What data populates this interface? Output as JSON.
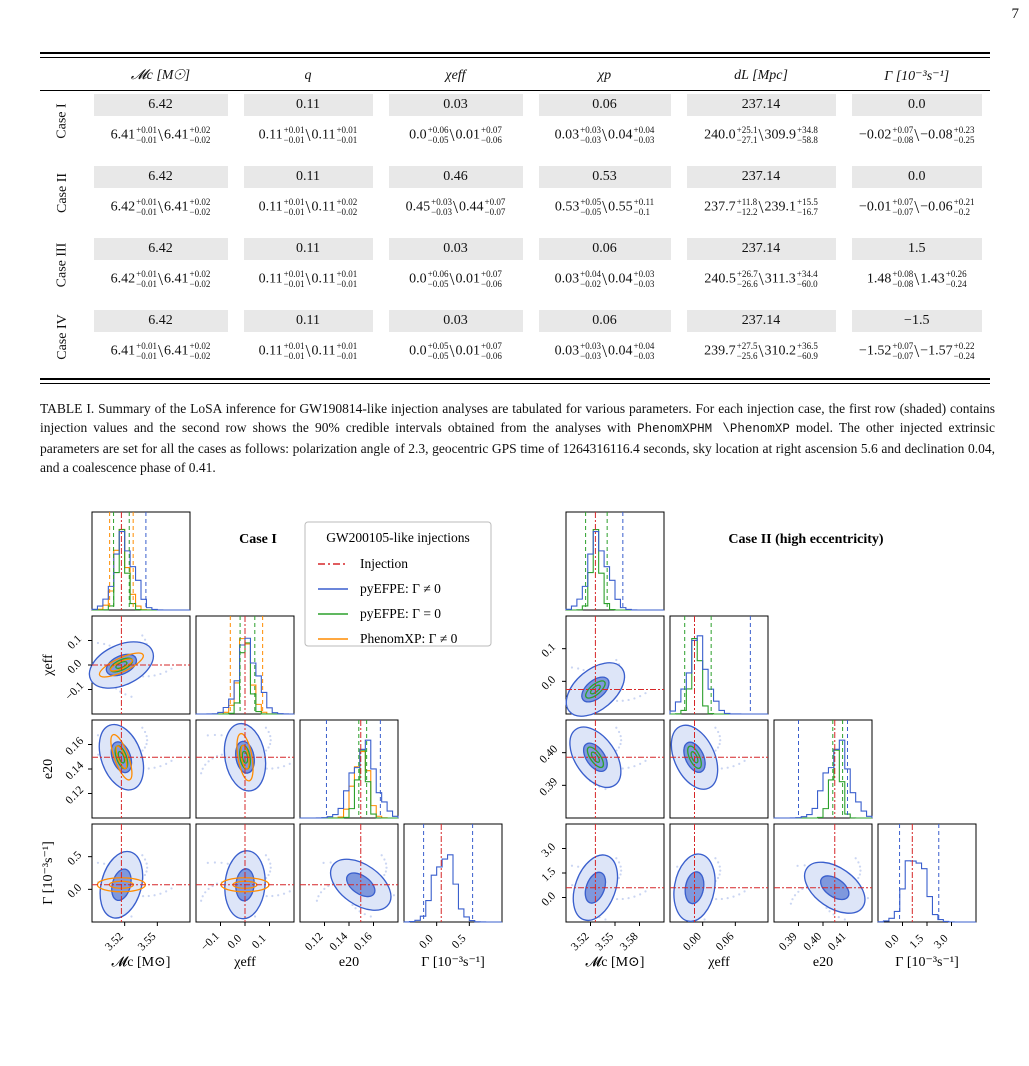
{
  "page_number": "7",
  "table": {
    "headers": [
      "𝓜c [M☉]",
      "q",
      "χeff",
      "χp",
      "dL [Mpc]",
      "Γ [10⁻³s⁻¹]"
    ],
    "cases": [
      {
        "label": "Case I",
        "injection": [
          "6.42",
          "0.11",
          "0.03",
          "0.06",
          "237.14",
          "0.0"
        ],
        "intervals": [
          {
            "a": "6.41",
            "a_up": "+0.01",
            "a_lo": "−0.01",
            "b": "6.41",
            "b_up": "+0.02",
            "b_lo": "−0.02"
          },
          {
            "a": "0.11",
            "a_up": "+0.01",
            "a_lo": "−0.01",
            "b": "0.11",
            "b_up": "+0.01",
            "b_lo": "−0.01"
          },
          {
            "a": "0.0",
            "a_up": "+0.06",
            "a_lo": "−0.05",
            "b": "0.01",
            "b_up": "+0.07",
            "b_lo": "−0.06"
          },
          {
            "a": "0.03",
            "a_up": "+0.03",
            "a_lo": "−0.03",
            "b": "0.04",
            "b_up": "+0.04",
            "b_lo": "−0.03"
          },
          {
            "a": "240.0",
            "a_up": "+25.1",
            "a_lo": "−27.1",
            "b": "309.9",
            "b_up": "+34.8",
            "b_lo": "−58.8"
          },
          {
            "a": "−0.02",
            "a_up": "+0.07",
            "a_lo": "−0.08",
            "b": "−0.08",
            "b_up": "+0.23",
            "b_lo": "−0.25"
          }
        ]
      },
      {
        "label": "Case II",
        "injection": [
          "6.42",
          "0.11",
          "0.46",
          "0.53",
          "237.14",
          "0.0"
        ],
        "intervals": [
          {
            "a": "6.42",
            "a_up": "+0.01",
            "a_lo": "−0.01",
            "b": "6.41",
            "b_up": "+0.02",
            "b_lo": "−0.02"
          },
          {
            "a": "0.11",
            "a_up": "+0.01",
            "a_lo": "−0.01",
            "b": "0.11",
            "b_up": "+0.02",
            "b_lo": "−0.02"
          },
          {
            "a": "0.45",
            "a_up": "+0.03",
            "a_lo": "−0.03",
            "b": "0.44",
            "b_up": "+0.07",
            "b_lo": "−0.07"
          },
          {
            "a": "0.53",
            "a_up": "+0.05",
            "a_lo": "−0.05",
            "b": "0.55",
            "b_up": "+0.11",
            "b_lo": "−0.1"
          },
          {
            "a": "237.7",
            "a_up": "+11.8",
            "a_lo": "−12.2",
            "b": "239.1",
            "b_up": "+15.5",
            "b_lo": "−16.7"
          },
          {
            "a": "−0.01",
            "a_up": "+0.07",
            "a_lo": "−0.07",
            "b": "−0.06",
            "b_up": "+0.21",
            "b_lo": "−0.2"
          }
        ]
      },
      {
        "label": "Case III",
        "injection": [
          "6.42",
          "0.11",
          "0.03",
          "0.06",
          "237.14",
          "1.5"
        ],
        "intervals": [
          {
            "a": "6.42",
            "a_up": "+0.01",
            "a_lo": "−0.01",
            "b": "6.41",
            "b_up": "+0.02",
            "b_lo": "−0.02"
          },
          {
            "a": "0.11",
            "a_up": "+0.01",
            "a_lo": "−0.01",
            "b": "0.11",
            "b_up": "+0.01",
            "b_lo": "−0.01"
          },
          {
            "a": "0.0",
            "a_up": "+0.06",
            "a_lo": "−0.05",
            "b": "0.01",
            "b_up": "+0.07",
            "b_lo": "−0.06"
          },
          {
            "a": "0.03",
            "a_up": "+0.04",
            "a_lo": "−0.02",
            "b": "0.04",
            "b_up": "+0.03",
            "b_lo": "−0.03"
          },
          {
            "a": "240.5",
            "a_up": "+26.7",
            "a_lo": "−26.6",
            "b": "311.3",
            "b_up": "+34.4",
            "b_lo": "−60.0"
          },
          {
            "a": "1.48",
            "a_up": "+0.08",
            "a_lo": "−0.08",
            "b": "1.43",
            "b_up": "+0.26",
            "b_lo": "−0.24"
          }
        ]
      },
      {
        "label": "Case IV",
        "injection": [
          "6.42",
          "0.11",
          "0.03",
          "0.06",
          "237.14",
          "−1.5"
        ],
        "intervals": [
          {
            "a": "6.41",
            "a_up": "+0.01",
            "a_lo": "−0.01",
            "b": "6.41",
            "b_up": "+0.02",
            "b_lo": "−0.02"
          },
          {
            "a": "0.11",
            "a_up": "+0.01",
            "a_lo": "−0.01",
            "b": "0.11",
            "b_up": "+0.01",
            "b_lo": "−0.01"
          },
          {
            "a": "0.0",
            "a_up": "+0.05",
            "a_lo": "−0.05",
            "b": "0.01",
            "b_up": "+0.07",
            "b_lo": "−0.06"
          },
          {
            "a": "0.03",
            "a_up": "+0.03",
            "a_lo": "−0.03",
            "b": "0.04",
            "b_up": "+0.04",
            "b_lo": "−0.03"
          },
          {
            "a": "239.7",
            "a_up": "+27.5",
            "a_lo": "−25.6",
            "b": "310.2",
            "b_up": "+36.5",
            "b_lo": "−60.9"
          },
          {
            "a": "−1.52",
            "a_up": "+0.07",
            "a_lo": "−0.07",
            "b": "−1.57",
            "b_up": "+0.22",
            "b_lo": "−0.24"
          }
        ]
      }
    ]
  },
  "caption": {
    "part1": "TABLE I. Summary of the LoSA inference for GW190814-like injection analyses are tabulated for various parameters. For each injection case, the first row (shaded) contains injection values and the second row shows the 90% credible intervals obtained from the analyses with ",
    "model": "PhenomXPHM \\PhenomXP",
    "part2": " model. The other injected extrinsic parameters are set for all the cases as follows: polarization angle of 2.3, geocentric GPS time of 1264316116.4 seconds, sky location at right ascension 5.6 and declination 0.04, and a coalescence phase of 0.41."
  },
  "figure": {
    "panel_left_title": "Case I",
    "panel_right_title": "Case II (high eccentricity)",
    "legend": {
      "title": "GW200105-like injections",
      "entries": [
        {
          "label": "Injection",
          "color": "#d62728",
          "style": "dashdot"
        },
        {
          "label": "pyEFPE: Γ ≠ 0",
          "color": "#3a5fcd",
          "style": "solid"
        },
        {
          "label": "pyEFPE: Γ = 0",
          "color": "#2ca02c",
          "style": "solid"
        },
        {
          "label": "PhenomXP: Γ ≠ 0",
          "color": "#ff8c00",
          "style": "solid"
        }
      ]
    },
    "left_axes": {
      "xlabels": [
        "𝓜c [M⊙]",
        "χeff",
        "e20",
        "Γ [10⁻³s⁻¹]"
      ],
      "ylabels": [
        "χeff",
        "e20",
        "Γ [10⁻³s⁻¹]"
      ],
      "xticks": [
        [
          "3.52",
          "3.55"
        ],
        [
          "−0.1",
          "0.0",
          "0.1"
        ],
        [
          "0.12",
          "0.14",
          "0.16"
        ],
        [
          "0.0",
          "0.5"
        ]
      ],
      "yticks": [
        [
          "0.1",
          "0.0",
          "−0.1"
        ],
        [
          "0.16",
          "0.14",
          "0.12"
        ],
        [
          "0.5",
          "0.0"
        ]
      ]
    },
    "right_axes": {
      "xlabels": [
        "𝓜c [M⊙]",
        "χeff",
        "e20",
        "Γ [10⁻³s⁻¹]"
      ],
      "xticks": [
        [
          "3.52",
          "3.55",
          "3.58"
        ],
        [
          "0.00",
          "0.06"
        ],
        [
          "0.39",
          "0.40",
          "0.41"
        ],
        [
          "0.0",
          "1.5",
          "3.0"
        ]
      ],
      "yticks": [
        [
          "0.1",
          "0.0"
        ],
        [
          "0.40",
          "0.39"
        ],
        [
          "3.0",
          "1.5",
          "0.0"
        ]
      ]
    },
    "colors": {
      "injection": "#d62728",
      "blue": "#3a5fcd",
      "green": "#2ca02c",
      "orange": "#ff8c00"
    }
  }
}
